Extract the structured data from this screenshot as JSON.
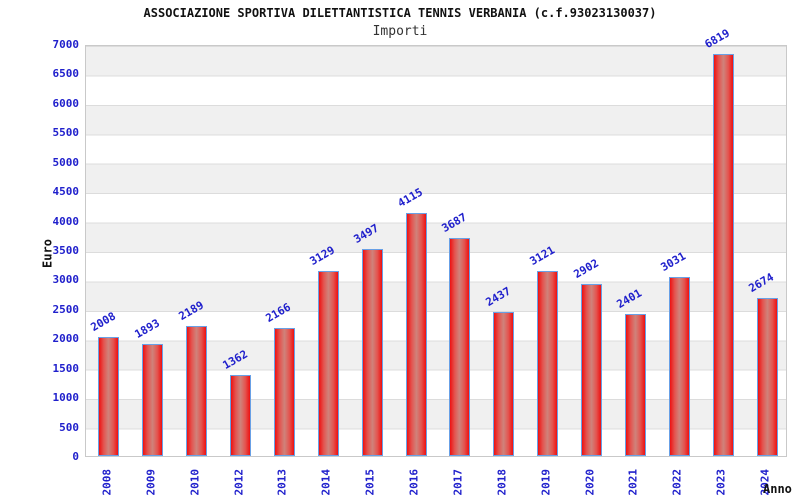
{
  "header": {
    "title": "ASSOCIAZIONE SPORTIVA DILETTANTISTICA TENNIS VERBANIA (c.f.93023130037)",
    "subtitle": "Importi"
  },
  "chart_data": {
    "type": "bar",
    "title": "ASSOCIAZIONE SPORTIVA DILETTANTISTICA TENNIS VERBANIA (c.f.93023130037)",
    "subtitle": "Importi",
    "xlabel": "Anno",
    "ylabel": "Euro",
    "categories": [
      "2008",
      "2009",
      "2010",
      "2012",
      "2013",
      "2014",
      "2015",
      "2016",
      "2017",
      "2018",
      "2019",
      "2020",
      "2021",
      "2022",
      "2023",
      "2024"
    ],
    "values": [
      2008,
      1893,
      2189,
      1362,
      2166,
      3129,
      3497,
      4115,
      3687,
      2437,
      3121,
      2902,
      2401,
      3031,
      6819,
      2674
    ],
    "ylim": [
      0,
      7000
    ],
    "ytick_step": 500,
    "yticks": [
      0,
      500,
      1000,
      1500,
      2000,
      2500,
      3000,
      3500,
      4000,
      4500,
      5000,
      5500,
      6000,
      6500,
      7000
    ],
    "grid": "horizontal",
    "legend": "none",
    "value_labels_rotation_deg": -30,
    "x_labels_rotation_deg": -90,
    "colors": {
      "bar_fill_edge": "#ee1111",
      "bar_fill_center": "#cf837b",
      "bar_border": "#68a0e6",
      "label_blue": "#2020cc",
      "band_gray": "#f0f0f0",
      "grid_line": "#dcdcdc",
      "plot_border": "#c9c9c9",
      "title_color": "#111111"
    }
  }
}
